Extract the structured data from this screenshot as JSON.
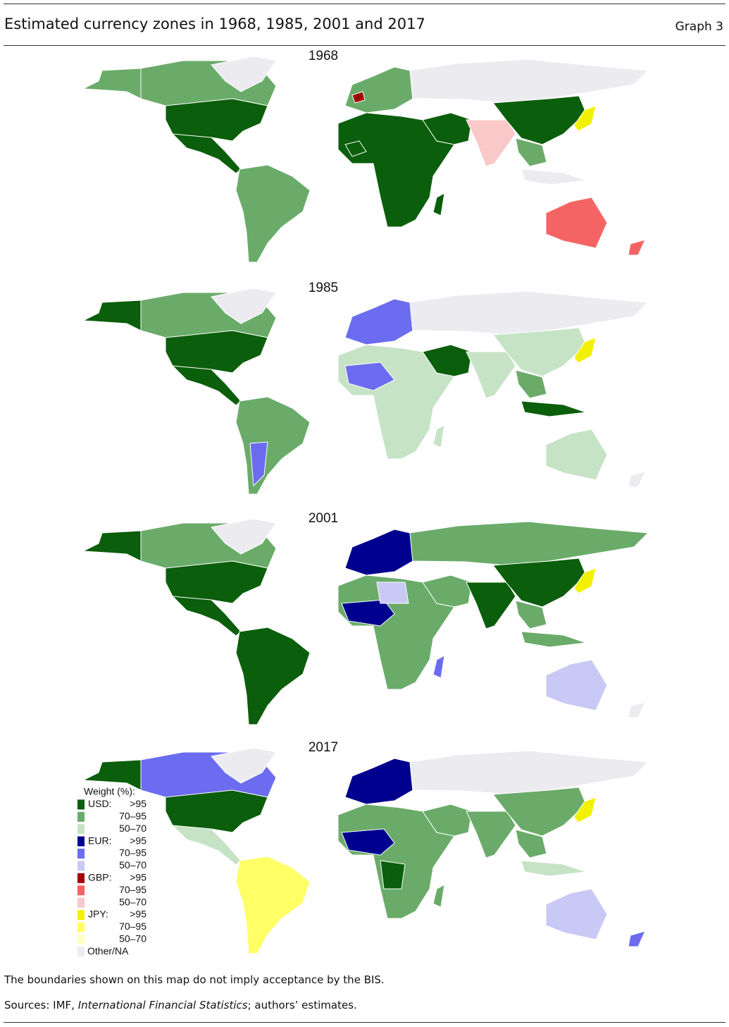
{
  "header": {
    "title": "Estimated currency zones in 1968, 1985, 2001 and 2017",
    "graph": "Graph 3"
  },
  "panels": [
    {
      "year": "1968"
    },
    {
      "year": "1985"
    },
    {
      "year": "2001"
    },
    {
      "year": "2017"
    }
  ],
  "legend": {
    "title": "Weight (%):",
    "groups": [
      {
        "currency": "USD:",
        "levels": [
          {
            "label": ">95",
            "color": "#0b5e0b"
          },
          {
            "label": "70–95",
            "color": "#6aab6a"
          },
          {
            "label": "50–70",
            "color": "#c6e3c6"
          }
        ]
      },
      {
        "currency": "EUR:",
        "levels": [
          {
            "label": ">95",
            "color": "#00008f"
          },
          {
            "label": "70–95",
            "color": "#6c6cf0"
          },
          {
            "label": "50–70",
            "color": "#c9c9f5"
          }
        ]
      },
      {
        "currency": "GBP:",
        "levels": [
          {
            "label": ">95",
            "color": "#a00000"
          },
          {
            "label": "70–95",
            "color": "#f56464"
          },
          {
            "label": "50–70",
            "color": "#f9c8c8"
          }
        ]
      },
      {
        "currency": "JPY:",
        "levels": [
          {
            "label": ">95",
            "color": "#f2f200"
          },
          {
            "label": "70–95",
            "color": "#ffff66"
          },
          {
            "label": "50–70",
            "color": "#ffffc4"
          }
        ]
      }
    ],
    "other": {
      "label": "Other/NA",
      "color": "#ececf0"
    }
  },
  "footnote": "The boundaries shown on this map do not imply acceptance by the BIS.",
  "sources": [
    "Sources: IMF, ",
    "International Financial Statistics",
    "; authors’ estimates."
  ]
}
